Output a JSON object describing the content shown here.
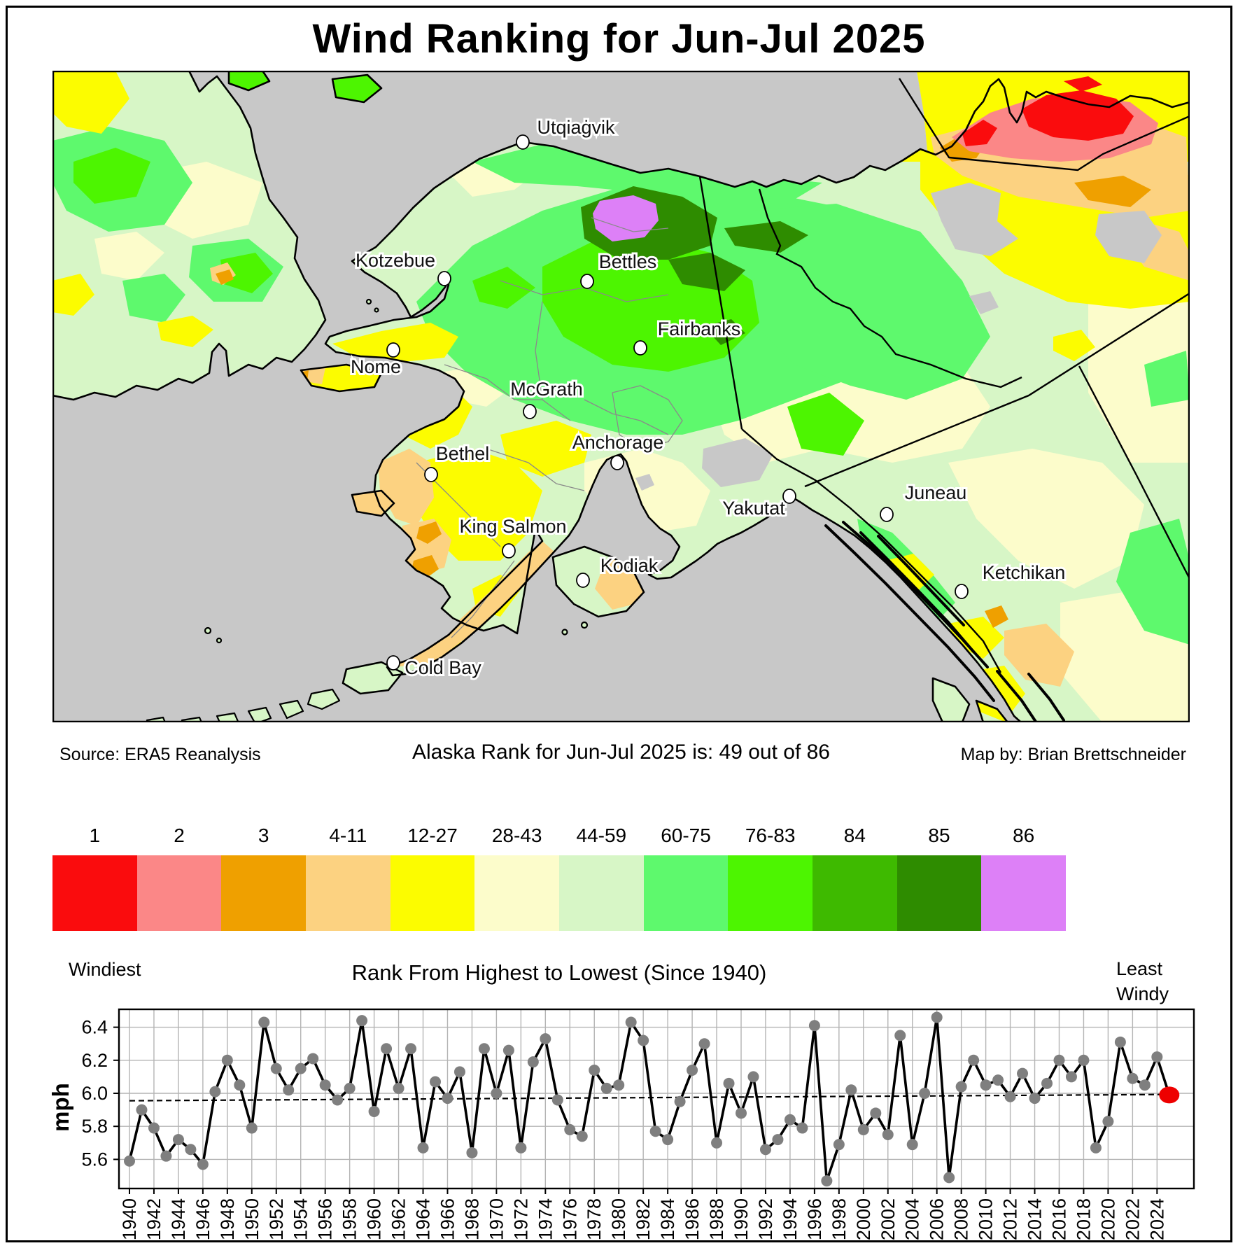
{
  "title": "Wind Ranking for Jun-Jul 2025",
  "captions": {
    "source": "Source: ERA5 Reanalysis",
    "center": "Alaska Rank for Jun-Jul 2025 is: 49 out of 86",
    "credit": "Map by: Brian Brettschneider"
  },
  "colorbar": {
    "segments": [
      {
        "label": "1",
        "color": "#fa0c0d"
      },
      {
        "label": "2",
        "color": "#fb8787"
      },
      {
        "label": "3",
        "color": "#efa000"
      },
      {
        "label": "4-11",
        "color": "#fcd281"
      },
      {
        "label": "12-27",
        "color": "#fcfc00"
      },
      {
        "label": "28-43",
        "color": "#fcfccb"
      },
      {
        "label": "44-59",
        "color": "#d7f6c6"
      },
      {
        "label": "60-75",
        "color": "#5ef96d"
      },
      {
        "label": "76-83",
        "color": "#4df501"
      },
      {
        "label": "84",
        "color": "#3eba00"
      },
      {
        "label": "85",
        "color": "#2e8c00"
      },
      {
        "label": "86",
        "color": "#dd80f7"
      }
    ],
    "left_caption": "Windiest",
    "center_caption": "Rank From Highest to Lowest (Since 1940)",
    "right_caption": "Least\nWindy"
  },
  "map": {
    "ocean_color": "#c8c8c8",
    "cities": [
      {
        "name": "Utqiaġvik",
        "dot": [
          672,
          102
        ],
        "label": [
          748,
          90
        ]
      },
      {
        "name": "Kotzebue",
        "dot": [
          560,
          297
        ],
        "label": [
          490,
          280
        ]
      },
      {
        "name": "Bettles",
        "dot": [
          764,
          301
        ],
        "label": [
          822,
          282
        ]
      },
      {
        "name": "Fairbanks",
        "dot": [
          840,
          396
        ],
        "label": [
          924,
          378
        ]
      },
      {
        "name": "Nome",
        "dot": [
          487,
          399
        ],
        "label": [
          462,
          432
        ]
      },
      {
        "name": "McGrath",
        "dot": [
          682,
          487
        ],
        "label": [
          706,
          464
        ]
      },
      {
        "name": "Anchorage",
        "dot": [
          807,
          560
        ],
        "label": [
          808,
          540
        ]
      },
      {
        "name": "Bethel",
        "dot": [
          541,
          577
        ],
        "label": [
          586,
          556
        ]
      },
      {
        "name": "Yakutat",
        "dot": [
          1053,
          608
        ],
        "label": [
          1002,
          634
        ]
      },
      {
        "name": "Juneau",
        "dot": [
          1192,
          634
        ],
        "label": [
          1262,
          612
        ]
      },
      {
        "name": "King Salmon",
        "dot": [
          652,
          686
        ],
        "label": [
          658,
          660
        ]
      },
      {
        "name": "Kodiak",
        "dot": [
          758,
          728
        ],
        "label": [
          824,
          716
        ]
      },
      {
        "name": "Ketchikan",
        "dot": [
          1299,
          744
        ],
        "label": [
          1388,
          726
        ]
      },
      {
        "name": "Cold Bay",
        "dot": [
          487,
          846
        ],
        "label": [
          558,
          862
        ]
      }
    ]
  },
  "chart_data": {
    "type": "line",
    "title": "",
    "xlabel": "",
    "ylabel": "mph",
    "ylim": [
      5.42,
      6.51
    ],
    "grid": true,
    "y_ticks": [
      5.6,
      5.8,
      6.0,
      6.2,
      6.4
    ],
    "x_tick_start": 1940,
    "x_tick_end": 2024,
    "x_tick_step": 2,
    "x": [
      1940,
      1941,
      1942,
      1943,
      1944,
      1945,
      1946,
      1947,
      1948,
      1949,
      1950,
      1951,
      1952,
      1953,
      1954,
      1955,
      1956,
      1957,
      1958,
      1959,
      1960,
      1961,
      1962,
      1963,
      1964,
      1965,
      1966,
      1967,
      1968,
      1969,
      1970,
      1971,
      1972,
      1973,
      1974,
      1975,
      1976,
      1977,
      1978,
      1979,
      1980,
      1981,
      1982,
      1983,
      1984,
      1985,
      1986,
      1987,
      1988,
      1989,
      1990,
      1991,
      1992,
      1993,
      1994,
      1995,
      1996,
      1997,
      1998,
      1999,
      2000,
      2001,
      2002,
      2003,
      2004,
      2005,
      2006,
      2007,
      2008,
      2009,
      2010,
      2011,
      2012,
      2013,
      2014,
      2015,
      2016,
      2017,
      2018,
      2019,
      2020,
      2021,
      2022,
      2023,
      2024,
      2025
    ],
    "values": [
      5.59,
      5.9,
      5.79,
      5.62,
      5.72,
      5.66,
      5.57,
      6.01,
      6.2,
      6.05,
      5.79,
      6.43,
      6.15,
      6.02,
      6.15,
      6.21,
      6.05,
      5.96,
      6.03,
      6.44,
      5.89,
      6.27,
      6.03,
      6.27,
      5.67,
      6.07,
      5.97,
      6.13,
      5.64,
      6.27,
      6.0,
      6.26,
      5.67,
      6.19,
      6.33,
      5.96,
      5.78,
      5.74,
      6.14,
      6.03,
      6.05,
      6.43,
      6.32,
      5.77,
      5.72,
      5.95,
      6.14,
      6.3,
      5.7,
      6.06,
      5.88,
      6.1,
      5.66,
      5.72,
      5.84,
      5.79,
      6.41,
      5.47,
      5.69,
      6.02,
      5.78,
      5.88,
      5.75,
      6.35,
      5.69,
      6.0,
      6.46,
      5.49,
      6.04,
      6.2,
      6.05,
      6.08,
      5.98,
      6.12,
      5.97,
      6.06,
      6.2,
      6.1,
      6.2,
      5.67,
      5.83,
      6.31,
      6.09,
      6.05,
      6.22,
      5.99
    ],
    "highlight_year": 2025,
    "highlight_color": "#ee0000",
    "dot_color": "#7f7f7f",
    "line_color": "#000000",
    "trend": {
      "start_year": 1940,
      "start_value": 5.955,
      "end_year": 2025,
      "end_value": 5.993
    }
  }
}
